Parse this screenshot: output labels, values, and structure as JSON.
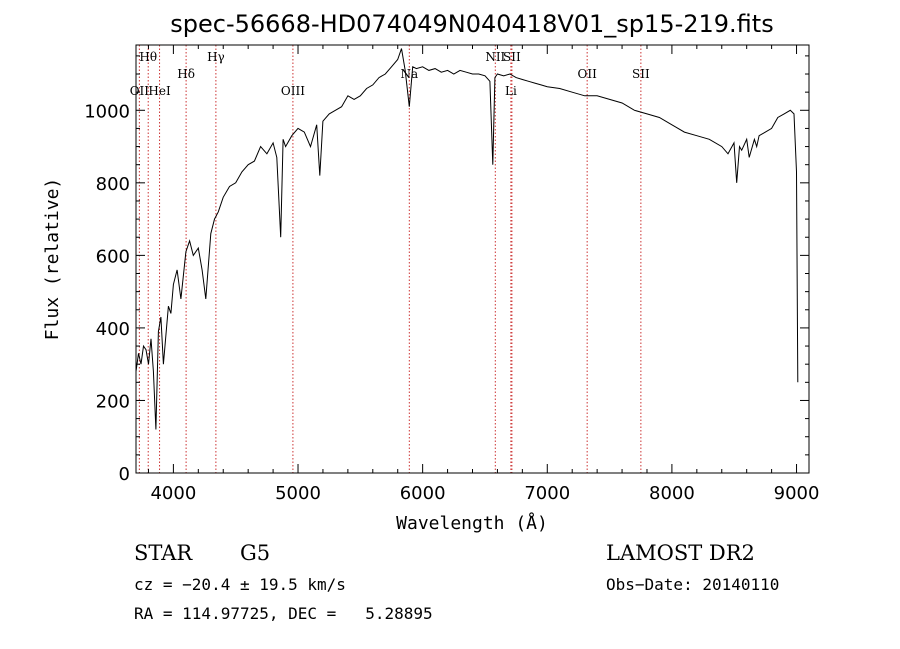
{
  "chart_data": {
    "type": "line",
    "title": "spec-56668-HD074049N040418V01_sp15-219.fits",
    "xlabel": "Wavelength (Å)",
    "ylabel": "Flux (relative)",
    "xlim": [
      3700,
      9100
    ],
    "ylim": [
      0,
      1180
    ],
    "xticks": [
      4000,
      5000,
      6000,
      7000,
      8000,
      9000
    ],
    "yticks": [
      0,
      200,
      400,
      600,
      800,
      1000
    ],
    "grid": false,
    "line_color": "#000000",
    "marker_color": "#cc3333",
    "lines": [
      {
        "label": "Hθ",
        "x": 3798,
        "row": 0
      },
      {
        "label": "OII",
        "x": 3727,
        "row": 2
      },
      {
        "label": "HeI",
        "x": 3889,
        "row": 2
      },
      {
        "label": "Hδ",
        "x": 4102,
        "row": 1
      },
      {
        "label": "Hγ",
        "x": 4341,
        "row": 0
      },
      {
        "label": "OIII",
        "x": 4959,
        "row": 2
      },
      {
        "label": "Na",
        "x": 5893,
        "row": 1
      },
      {
        "label": "NII",
        "x": 6583,
        "row": 0
      },
      {
        "label": "SII",
        "x": 6716,
        "row": 0
      },
      {
        "label": "Li",
        "x": 6708,
        "row": 2
      },
      {
        "label": "OII",
        "x": 7320,
        "row": 1
      },
      {
        "label": "SII",
        "x": 7751,
        "row": 1
      }
    ],
    "series": [
      {
        "x": [
          3700,
          3720,
          3740,
          3760,
          3780,
          3800,
          3820,
          3840,
          3860,
          3880,
          3900,
          3920,
          3940,
          3960,
          3980,
          4000,
          4030,
          4060,
          4100,
          4130,
          4160,
          4200,
          4230,
          4260,
          4300,
          4330,
          4360,
          4400,
          4450,
          4500,
          4550,
          4600,
          4650,
          4700,
          4750,
          4800,
          4830,
          4861,
          4880,
          4900,
          4950,
          5000,
          5050,
          5100,
          5150,
          5175,
          5200,
          5250,
          5300,
          5350,
          5400,
          5450,
          5500,
          5550,
          5600,
          5650,
          5700,
          5750,
          5800,
          5830,
          5860,
          5893,
          5920,
          5950,
          6000,
          6050,
          6100,
          6150,
          6200,
          6250,
          6300,
          6350,
          6400,
          6450,
          6500,
          6540,
          6563,
          6580,
          6600,
          6650,
          6700,
          6750,
          6800,
          6850,
          6900,
          6950,
          7000,
          7100,
          7200,
          7300,
          7400,
          7500,
          7600,
          7700,
          7800,
          7900,
          8000,
          8100,
          8200,
          8300,
          8400,
          8450,
          8498,
          8520,
          8542,
          8560,
          8600,
          8620,
          8662,
          8680,
          8700,
          8750,
          8800,
          8850,
          8900,
          8950,
          8980,
          9000,
          9010
        ],
        "y": [
          280,
          330,
          300,
          350,
          340,
          300,
          370,
          280,
          120,
          390,
          430,
          300,
          380,
          460,
          440,
          520,
          560,
          480,
          610,
          640,
          600,
          620,
          560,
          480,
          660,
          700,
          720,
          760,
          790,
          800,
          830,
          850,
          860,
          900,
          880,
          910,
          870,
          650,
          920,
          900,
          930,
          950,
          940,
          900,
          960,
          820,
          970,
          990,
          1000,
          1010,
          1040,
          1030,
          1040,
          1060,
          1070,
          1090,
          1100,
          1120,
          1140,
          1170,
          1110,
          1010,
          1120,
          1115,
          1120,
          1110,
          1115,
          1105,
          1110,
          1100,
          1110,
          1105,
          1100,
          1100,
          1095,
          1080,
          850,
          1090,
          1100,
          1095,
          1100,
          1090,
          1085,
          1080,
          1075,
          1070,
          1065,
          1060,
          1050,
          1040,
          1040,
          1030,
          1020,
          1000,
          990,
          980,
          960,
          940,
          930,
          920,
          900,
          880,
          910,
          800,
          900,
          890,
          920,
          870,
          920,
          900,
          930,
          940,
          950,
          980,
          990,
          1000,
          990,
          830,
          250
        ]
      }
    ]
  },
  "annotations": {
    "object_class": "STAR",
    "subclass": "G5",
    "survey": "LAMOST DR2",
    "cz": "cz = −20.4 ± 19.5 km/s",
    "obs_date": "Obs−Date: 20140110",
    "radec": "RA = 114.97725, DEC =   5.28895"
  }
}
